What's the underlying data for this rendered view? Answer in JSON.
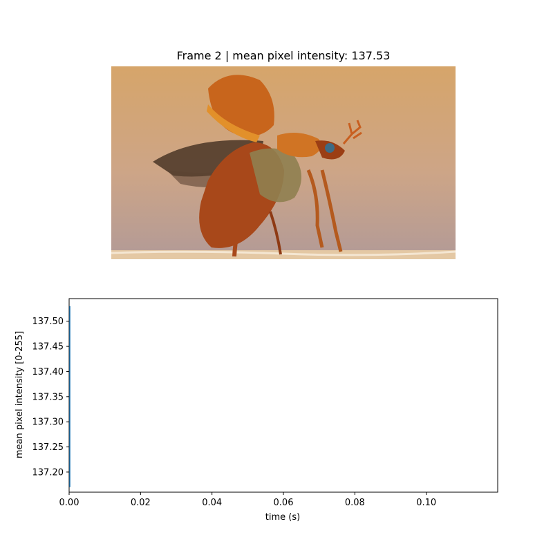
{
  "figure": {
    "title": "Frame 2 | mean pixel intensity: 137.53",
    "image_subject": "beetle-taking-off-photo"
  },
  "colors": {
    "line": "#1f77b4",
    "background_top": "#d6a56a",
    "background_bottom": "#b89a92",
    "beetle_body": "#a8481a",
    "beetle_shell": "#c86a1e",
    "wing": "#4a3526",
    "ground": "#e8d0b0"
  },
  "chart_data": {
    "type": "line",
    "title": "",
    "xlabel": "time (s)",
    "ylabel": "mean pixel intensity [0-255]",
    "xlim": [
      0.0,
      0.12
    ],
    "ylim": [
      137.16,
      137.545
    ],
    "x_ticks": [
      0.0,
      0.02,
      0.04,
      0.06,
      0.08,
      0.1
    ],
    "x_tick_labels": [
      "0.00",
      "0.02",
      "0.04",
      "0.06",
      "0.08",
      "0.10"
    ],
    "y_ticks": [
      137.2,
      137.25,
      137.3,
      137.35,
      137.4,
      137.45,
      137.5
    ],
    "y_tick_labels": [
      "137.20",
      "137.25",
      "137.30",
      "137.35",
      "137.40",
      "137.45",
      "137.50"
    ],
    "grid": false,
    "series": [
      {
        "x": [
          0.0,
          0.0
        ],
        "y": [
          137.17,
          137.53
        ]
      }
    ]
  }
}
